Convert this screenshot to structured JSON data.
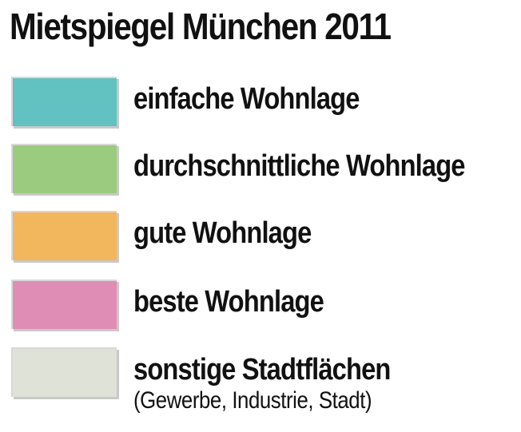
{
  "title": "Mietspiegel München 2011",
  "legend": {
    "items": [
      {
        "label": "einfache Wohnlage",
        "color": "#62c1c1"
      },
      {
        "label": "durchschnittliche Wohnlage",
        "color": "#9bcb7e"
      },
      {
        "label": "gute Wohnlage",
        "color": "#f2b65c"
      },
      {
        "label": "beste Wohnlage",
        "color": "#df8db5"
      },
      {
        "label": "sonstige Stadtflächen",
        "sublabel": "(Gewerbe, Industrie, Stadt)",
        "color": "#dfe2d6"
      }
    ]
  }
}
